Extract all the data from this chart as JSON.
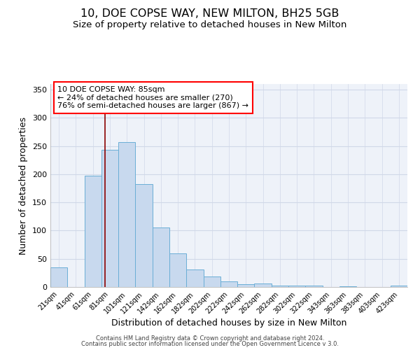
{
  "title1": "10, DOE COPSE WAY, NEW MILTON, BH25 5GB",
  "title2": "Size of property relative to detached houses in New Milton",
  "xlabel": "Distribution of detached houses by size in New Milton",
  "ylabel": "Number of detached properties",
  "categories": [
    "21sqm",
    "41sqm",
    "61sqm",
    "81sqm",
    "101sqm",
    "121sqm",
    "142sqm",
    "162sqm",
    "182sqm",
    "202sqm",
    "222sqm",
    "242sqm",
    "262sqm",
    "282sqm",
    "302sqm",
    "322sqm",
    "343sqm",
    "363sqm",
    "383sqm",
    "403sqm",
    "423sqm"
  ],
  "values": [
    35,
    0,
    197,
    243,
    257,
    183,
    105,
    59,
    31,
    19,
    10,
    5,
    6,
    3,
    3,
    3,
    0,
    1,
    0,
    0,
    3
  ],
  "bar_color": "#c8d9ee",
  "bar_edge_color": "#6aaed6",
  "annotation_text": "10 DOE COPSE WAY: 85sqm\n← 24% of detached houses are smaller (270)\n76% of semi-detached houses are larger (867) →",
  "ylim": [
    0,
    360
  ],
  "yticks": [
    0,
    50,
    100,
    150,
    200,
    250,
    300,
    350
  ],
  "grid_color": "#d0d8e8",
  "background_color": "#eef2f9",
  "footer1": "Contains HM Land Registry data © Crown copyright and database right 2024.",
  "footer2": "Contains public sector information licensed under the Open Government Licence v 3.0.",
  "title_fontsize": 11.5,
  "subtitle_fontsize": 9.5,
  "tick_fontsize": 7,
  "ylabel_fontsize": 9,
  "xlabel_fontsize": 9,
  "annotation_fontsize": 8
}
